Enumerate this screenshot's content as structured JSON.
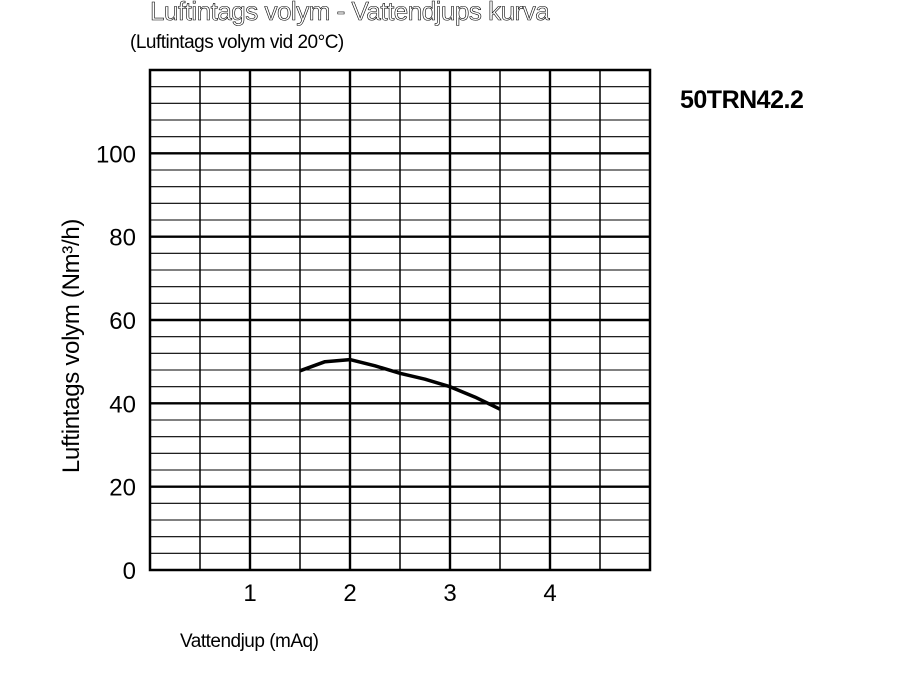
{
  "chart_data": {
    "type": "line",
    "title": "Luftintags volym - Vattendjups kurva",
    "subtitle": "(Luftintags volym vid 20°C)",
    "model_label": "50TRN42.2",
    "xlabel": "Vattendjup (mAq)",
    "ylabel": "Luftintags volym (Nm³/h)",
    "xlim": [
      0,
      5
    ],
    "ylim": [
      0,
      120
    ],
    "x_ticks": [
      1,
      2,
      3,
      4
    ],
    "y_ticks": [
      0,
      20,
      40,
      60,
      80,
      100
    ],
    "x_minor_step": 0.5,
    "y_minor_step": 4,
    "grid": true,
    "series": [
      {
        "x": [
          1.5,
          1.75,
          2.0,
          2.25,
          2.5,
          2.75,
          3.0,
          3.25,
          3.5
        ],
        "y": [
          47.8,
          50.0,
          50.5,
          49.0,
          47.2,
          45.8,
          44.0,
          41.5,
          38.6
        ]
      }
    ]
  }
}
